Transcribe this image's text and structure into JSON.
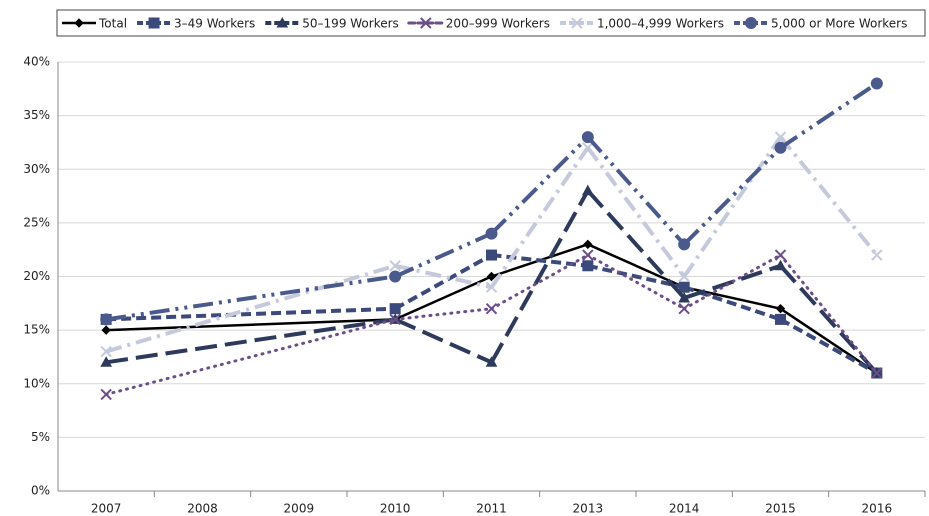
{
  "chart_data": {
    "type": "line",
    "categories": [
      "2007",
      "2008",
      "2009",
      "2010",
      "2011",
      "2013",
      "2014",
      "2015",
      "2016"
    ],
    "series": [
      {
        "name": "Total",
        "color": "#000000",
        "values": [
          15,
          null,
          null,
          16,
          20,
          23,
          19,
          17,
          11
        ]
      },
      {
        "name": "3–49 Workers",
        "color": "#3b4a7a",
        "values": [
          16,
          null,
          null,
          17,
          22,
          21,
          19,
          16,
          11
        ]
      },
      {
        "name": "50–199 Workers",
        "color": "#2e3a5c",
        "values": [
          12,
          null,
          null,
          16,
          12,
          28,
          18,
          21,
          11
        ]
      },
      {
        "name": "200–999 Workers",
        "color": "#6b4e8a",
        "values": [
          9,
          null,
          null,
          16,
          17,
          22,
          17,
          22,
          11
        ]
      },
      {
        "name": "1,000–4,999 Workers",
        "color": "#c5c9dc",
        "values": [
          13,
          null,
          null,
          21,
          19,
          32,
          20,
          33,
          22
        ]
      },
      {
        "name": "5,000 or More Workers",
        "color": "#4a5a8c",
        "values": [
          16,
          null,
          null,
          20,
          24,
          33,
          23,
          32,
          38
        ]
      }
    ],
    "ylim": [
      0,
      40
    ],
    "yticks": [
      {
        "value": 0,
        "label": "0%"
      },
      {
        "value": 5,
        "label": "5%"
      },
      {
        "value": 10,
        "label": "10%"
      },
      {
        "value": 15,
        "label": "15%"
      },
      {
        "value": 20,
        "label": "20%"
      },
      {
        "value": 25,
        "label": "25%"
      },
      {
        "value": 30,
        "label": "30%"
      },
      {
        "value": 35,
        "label": "35%"
      },
      {
        "value": 40,
        "label": "40%"
      }
    ],
    "grid": true,
    "legend": "top"
  }
}
